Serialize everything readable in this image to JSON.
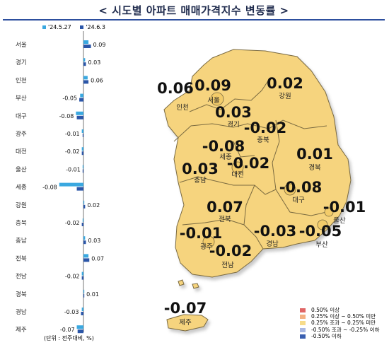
{
  "title": "< 시도별 아파트 매매가격지수 변동률 >",
  "chart_data": {
    "type": "bar",
    "orientation": "horizontal",
    "categories": [
      "서울",
      "경기",
      "인천",
      "부산",
      "대구",
      "광주",
      "대전",
      "울산",
      "세종",
      "강원",
      "충북",
      "충남",
      "전북",
      "전남",
      "경북",
      "경남",
      "제주"
    ],
    "series": [
      {
        "name": "'24.5.27",
        "color": "#3aa8e0",
        "values": [
          0.06,
          0.02,
          0.05,
          -0.04,
          -0.09,
          -0.02,
          -0.02,
          -0.01,
          -0.29,
          0.01,
          -0.01,
          0.02,
          0.06,
          -0.02,
          0.01,
          -0.02,
          -0.08
        ]
      },
      {
        "name": "'24.6.3",
        "color": "#2b56a8",
        "values": [
          0.09,
          0.03,
          0.06,
          -0.05,
          -0.08,
          -0.01,
          -0.02,
          -0.01,
          -0.08,
          0.02,
          -0.02,
          0.03,
          0.07,
          -0.02,
          0.01,
          -0.03,
          -0.07
        ]
      }
    ],
    "value_labels": [
      "0.09",
      "0.03",
      "0.06",
      "-0.05",
      "-0.08",
      "-0.01",
      "-0.02",
      "-0.01",
      "-0.08",
      "0.02",
      "-0.02",
      "0.03",
      "0.07",
      "-0.02",
      "0.01",
      "-0.03",
      "-0.07"
    ],
    "unit_note": "(단위 : 전주대비, %)"
  },
  "map": {
    "regions": [
      {
        "name": "인천",
        "value": "0.06"
      },
      {
        "name": "서울",
        "value": "0.09"
      },
      {
        "name": "강원",
        "value": "0.02"
      },
      {
        "name": "경기",
        "value": "0.03"
      },
      {
        "name": "충북",
        "value": "-0.02"
      },
      {
        "name": "세종",
        "value": "-0.08"
      },
      {
        "name": "대전",
        "value": "-0.02"
      },
      {
        "name": "충남",
        "value": "0.03"
      },
      {
        "name": "경북",
        "value": "0.01"
      },
      {
        "name": "대구",
        "value": "-0.08"
      },
      {
        "name": "전북",
        "value": "0.07"
      },
      {
        "name": "울산",
        "value": "-0.01"
      },
      {
        "name": "광주",
        "value": "-0.01"
      },
      {
        "name": "경남",
        "value": "-0.03"
      },
      {
        "name": "부산",
        "value": "-0.05"
      },
      {
        "name": "전남",
        "value": "-0.02"
      },
      {
        "name": "제주",
        "value": "-0.07"
      }
    ]
  },
  "legend": [
    {
      "label": "0.50% 이상",
      "color": "#e06666"
    },
    {
      "label": "0.25% 이상 ~ 0.50% 미만",
      "color": "#f4b183"
    },
    {
      "label": "0.25% 조과 ~ 0.25% 미만",
      "color": "#f7dc8a"
    },
    {
      "label": "-0.50% 조과 ~ -0.25% 이하",
      "color": "#a9b8e3"
    },
    {
      "label": "-0.50% 이하",
      "color": "#3a5fb0"
    }
  ],
  "colors": {
    "map_fill": "#f6d47e",
    "map_stroke": "#7a6a40",
    "axis": "#555555",
    "title_rule": "#2d4f9e"
  }
}
